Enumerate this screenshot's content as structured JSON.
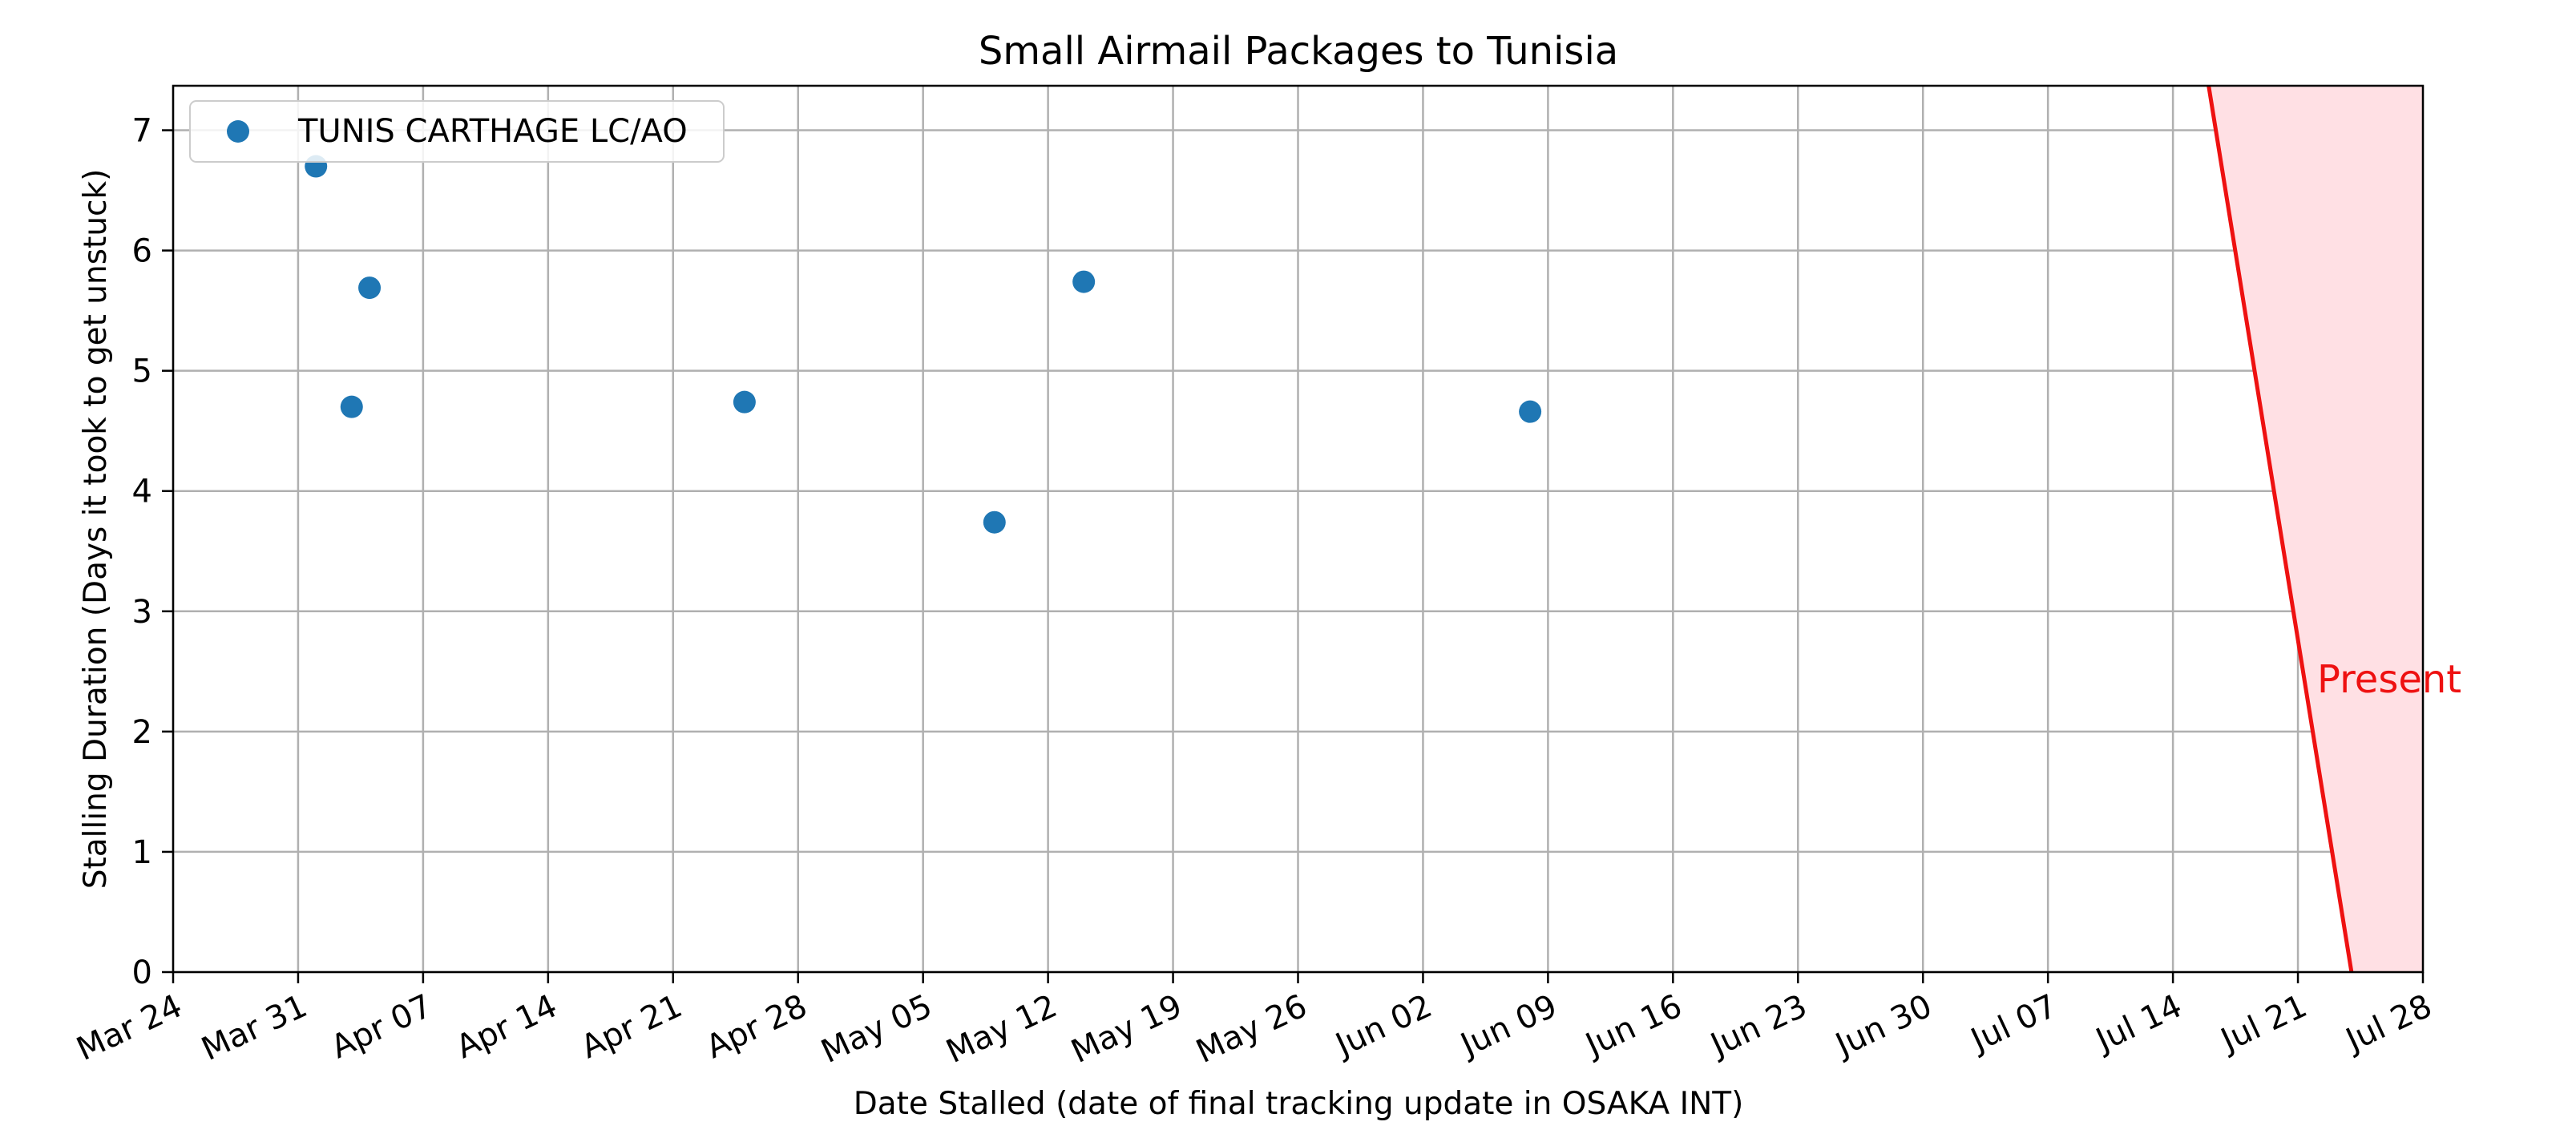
{
  "chart_data": {
    "type": "scatter",
    "title": "Small Airmail Packages to Tunisia",
    "xlabel": "Date Stalled (date of final tracking update in OSAKA INT)",
    "ylabel": "Stalling Duration (Days it took to get unstuck)",
    "xlim": [
      "Mar 24",
      "Jul 28"
    ],
    "ylim": [
      0,
      7.37
    ],
    "grid": true,
    "legend_position": "top-left",
    "x_ticks": [
      "Mar 24",
      "Mar 31",
      "Apr 07",
      "Apr 14",
      "Apr 21",
      "Apr 28",
      "May 05",
      "May 12",
      "May 19",
      "May 26",
      "Jun 02",
      "Jun 09",
      "Jun 16",
      "Jun 23",
      "Jun 30",
      "Jul 07",
      "Jul 14",
      "Jul 21",
      "Jul 28"
    ],
    "y_ticks": [
      "0",
      "1",
      "2",
      "3",
      "4",
      "5",
      "6",
      "7"
    ],
    "series": [
      {
        "name": "TUNIS CARTHAGE LC/AO",
        "color": "#1f77b4",
        "points": [
          {
            "x": "Apr 01",
            "y": 6.7
          },
          {
            "x": "Apr 03",
            "y": 4.7
          },
          {
            "x": "Apr 04",
            "y": 5.69
          },
          {
            "x": "Apr 25",
            "y": 4.74
          },
          {
            "x": "May 09",
            "y": 3.74
          },
          {
            "x": "May 14",
            "y": 5.74
          },
          {
            "x": "Jun 08",
            "y": 4.66
          }
        ]
      }
    ],
    "present_marker": {
      "label": "Present",
      "color": "#ee1111",
      "fill": "#ffe0e4",
      "line_top": {
        "x": "Jul 16",
        "y": 7.37
      },
      "line_bottom": {
        "x": "Jul 24",
        "y": 0
      },
      "region_end": "Jul 28"
    }
  }
}
